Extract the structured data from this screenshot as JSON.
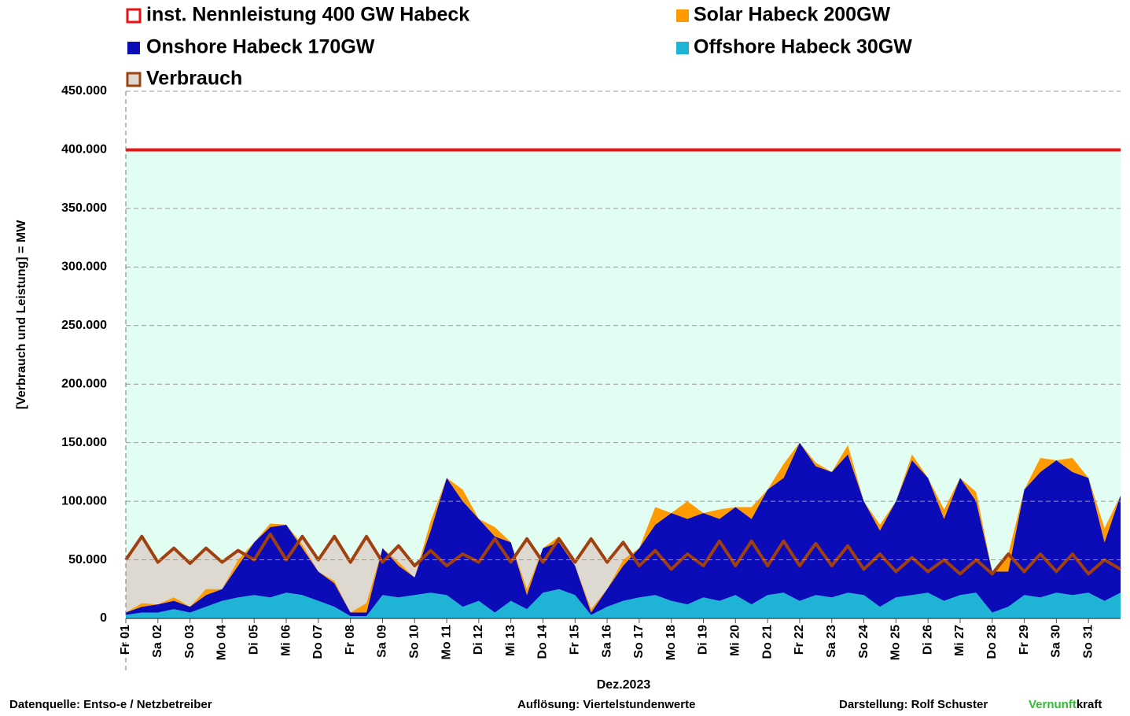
{
  "chart_data": {
    "type": "stacked-area",
    "ylabel": "[Verbrauch und Leistung] = MW",
    "xlabel": "Dez.2023",
    "xlim": [
      0,
      31
    ],
    "xticks": [
      {
        "value": 0,
        "label": "Fr 01"
      },
      {
        "value": 1,
        "label": "Sa 02"
      },
      {
        "value": 2,
        "label": "So 03"
      },
      {
        "value": 3,
        "label": "Mo 04"
      },
      {
        "value": 4,
        "label": "Di 05"
      },
      {
        "value": 5,
        "label": "Mi 06"
      },
      {
        "value": 6,
        "label": "Do 07"
      },
      {
        "value": 7,
        "label": "Fr 08"
      },
      {
        "value": 8,
        "label": "Sa 09"
      },
      {
        "value": 9,
        "label": "So 10"
      },
      {
        "value": 10,
        "label": "Mo 11"
      },
      {
        "value": 11,
        "label": "Di 12"
      },
      {
        "value": 12,
        "label": "Mi 13"
      },
      {
        "value": 13,
        "label": "Do 14"
      },
      {
        "value": 14,
        "label": "Fr 15"
      },
      {
        "value": 15,
        "label": "Sa 16"
      },
      {
        "value": 16,
        "label": "So 17"
      },
      {
        "value": 17,
        "label": "Mo 18"
      },
      {
        "value": 18,
        "label": "Di 19"
      },
      {
        "value": 19,
        "label": "Mi 20"
      },
      {
        "value": 20,
        "label": "Do 21"
      },
      {
        "value": 21,
        "label": "Fr 22"
      },
      {
        "value": 22,
        "label": "Sa 23"
      },
      {
        "value": 23,
        "label": "So 24"
      },
      {
        "value": 24,
        "label": "Mo 25"
      },
      {
        "value": 25,
        "label": "Di 26"
      },
      {
        "value": 26,
        "label": "Mi 27"
      },
      {
        "value": 27,
        "label": "Do 28"
      },
      {
        "value": 28,
        "label": "Fr 29"
      },
      {
        "value": 29,
        "label": "Sa 30"
      },
      {
        "value": 30,
        "label": "So 31"
      }
    ],
    "ylim": [
      0,
      450000
    ],
    "yticks": [
      0,
      {
        "value": 50000,
        "label": "50.000"
      },
      {
        "value": 100000,
        "label": "100.000"
      },
      {
        "value": 150000,
        "label": "150.000"
      },
      {
        "value": 200000,
        "label": "200.000"
      },
      {
        "value": 250000,
        "label": "250.000"
      },
      {
        "value": 300000,
        "label": "300.000"
      },
      {
        "value": 350000,
        "label": "350.000"
      },
      {
        "value": 400000,
        "label": "400.000"
      },
      {
        "value": 450000,
        "label": "450.000"
      }
    ],
    "grid": true,
    "x": [
      0,
      0.5,
      1,
      1.5,
      2,
      2.5,
      3,
      3.5,
      4,
      4.5,
      5,
      5.5,
      6,
      6.5,
      7,
      7.5,
      8,
      8.5,
      9,
      9.5,
      10,
      10.5,
      11,
      11.5,
      12,
      12.5,
      13,
      13.5,
      14,
      14.5,
      15,
      15.5,
      16,
      16.5,
      17,
      17.5,
      18,
      18.5,
      19,
      19.5,
      20,
      20.5,
      21,
      21.5,
      22,
      22.5,
      23,
      23.5,
      24,
      24.5,
      25,
      25.5,
      26,
      26.5,
      27,
      27.5,
      28,
      28.5,
      29,
      29.5,
      30,
      30.5,
      31
    ],
    "series": [
      {
        "name": "Offshore Habeck 30GW",
        "color": "#1fb3d6",
        "values": [
          3000,
          5000,
          5000,
          8000,
          5000,
          10000,
          15000,
          18000,
          20000,
          18000,
          22000,
          20000,
          15000,
          10000,
          2000,
          2000,
          20000,
          18000,
          20000,
          22000,
          20000,
          10000,
          15000,
          5000,
          15000,
          8000,
          22000,
          25000,
          20000,
          3000,
          10000,
          15000,
          18000,
          20000,
          15000,
          12000,
          18000,
          15000,
          20000,
          12000,
          20000,
          22000,
          15000,
          20000,
          18000,
          22000,
          20000,
          10000,
          18000,
          20000,
          22000,
          15000,
          20000,
          22000,
          5000,
          10000,
          20000,
          18000,
          22000,
          20000,
          22000,
          15000,
          22000
        ]
      },
      {
        "name": "Onshore Habeck 170GW",
        "color": "#0b0bb8",
        "values": [
          2000,
          5000,
          7000,
          7000,
          5000,
          10000,
          10000,
          27000,
          45000,
          60000,
          58000,
          40000,
          25000,
          20000,
          3000,
          3000,
          40000,
          27000,
          15000,
          53000,
          100000,
          90000,
          70000,
          65000,
          50000,
          12000,
          38000,
          40000,
          25000,
          2000,
          15000,
          30000,
          42000,
          60000,
          75000,
          73000,
          72000,
          70000,
          75000,
          73000,
          90000,
          98000,
          135000,
          110000,
          107000,
          118000,
          80000,
          65000,
          82000,
          115000,
          98000,
          70000,
          100000,
          78000,
          35000,
          30000,
          90000,
          107000,
          113000,
          105000,
          98000,
          50000,
          83000
        ]
      },
      {
        "name": "Solar Habeck 200GW",
        "color": "#ff9a00",
        "values": [
          0,
          3000,
          0,
          3000,
          0,
          5000,
          0,
          5000,
          0,
          3000,
          0,
          3000,
          0,
          2000,
          0,
          8000,
          0,
          3000,
          0,
          8000,
          0,
          10000,
          0,
          8000,
          0,
          5000,
          0,
          5000,
          0,
          3000,
          0,
          5000,
          0,
          15000,
          0,
          15000,
          0,
          8000,
          0,
          10000,
          0,
          12000,
          0,
          3000,
          0,
          8000,
          0,
          5000,
          0,
          5000,
          0,
          8000,
          0,
          8000,
          0,
          15000,
          0,
          12000,
          0,
          12000,
          0,
          12000,
          0
        ]
      }
    ],
    "consumption": {
      "name": "Verbrauch",
      "color": "#a0400f",
      "fill": "#ddd8d0",
      "values": [
        50000,
        70000,
        48000,
        60000,
        47000,
        60000,
        48000,
        58000,
        50000,
        72000,
        50000,
        70000,
        50000,
        70000,
        48000,
        70000,
        48000,
        62000,
        45000,
        58000,
        45000,
        55000,
        48000,
        68000,
        48000,
        68000,
        48000,
        68000,
        48000,
        68000,
        48000,
        65000,
        45000,
        58000,
        42000,
        55000,
        45000,
        66000,
        45000,
        66000,
        45000,
        66000,
        45000,
        64000,
        45000,
        62000,
        42000,
        55000,
        40000,
        52000,
        40000,
        50000,
        38000,
        50000,
        38000,
        55000,
        40000,
        55000,
        40000,
        55000,
        38000,
        50000,
        42000
      ]
    },
    "capacity": {
      "name": "inst. Nennleistung 400 GW Habeck",
      "color": "#ee1111",
      "value": 400000,
      "fill": "#e2fdf1"
    },
    "footer": {
      "source": "Datenquelle: Entso-e  / Netzbetreiber",
      "resolution": "Auflösung: Viertelstundenwerte",
      "author": "Darstellung:  Rolf Schuster",
      "brand_a": "Vernunft",
      "brand_b": "kraft"
    }
  }
}
